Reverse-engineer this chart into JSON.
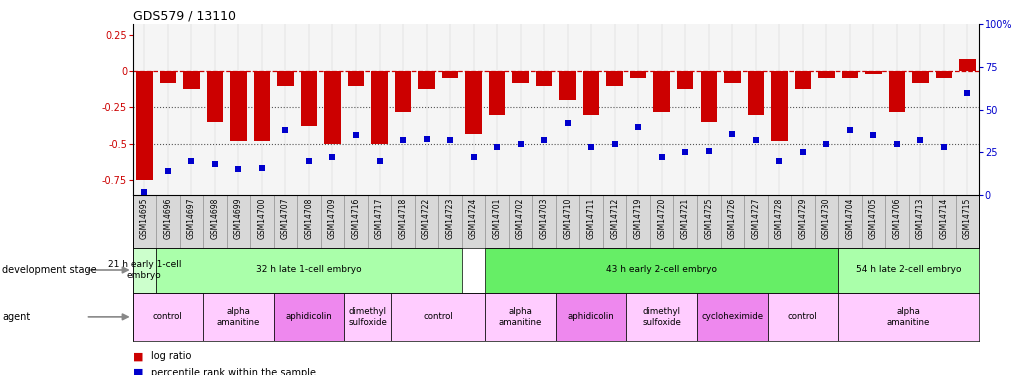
{
  "title": "GDS579 / 13110",
  "samples": [
    "GSM14695",
    "GSM14696",
    "GSM14697",
    "GSM14698",
    "GSM14699",
    "GSM14700",
    "GSM14707",
    "GSM14708",
    "GSM14709",
    "GSM14716",
    "GSM14717",
    "GSM14718",
    "GSM14722",
    "GSM14723",
    "GSM14724",
    "GSM14701",
    "GSM14702",
    "GSM14703",
    "GSM14710",
    "GSM14711",
    "GSM14712",
    "GSM14719",
    "GSM14720",
    "GSM14721",
    "GSM14725",
    "GSM14726",
    "GSM14727",
    "GSM14728",
    "GSM14729",
    "GSM14730",
    "GSM14704",
    "GSM14705",
    "GSM14706",
    "GSM14713",
    "GSM14714",
    "GSM14715"
  ],
  "log_ratio": [
    -0.75,
    -0.08,
    -0.12,
    -0.35,
    -0.48,
    -0.48,
    -0.1,
    -0.38,
    -0.5,
    -0.1,
    -0.5,
    -0.28,
    -0.12,
    -0.05,
    -0.43,
    -0.3,
    -0.08,
    -0.1,
    -0.2,
    -0.3,
    -0.1,
    -0.05,
    -0.28,
    -0.12,
    -0.35,
    -0.08,
    -0.3,
    -0.48,
    -0.12,
    -0.05,
    -0.05,
    -0.02,
    -0.28,
    -0.08,
    -0.05,
    0.08
  ],
  "percentile": [
    2,
    14,
    20,
    18,
    15,
    16,
    38,
    20,
    22,
    35,
    20,
    32,
    33,
    32,
    22,
    28,
    30,
    32,
    42,
    28,
    30,
    40,
    22,
    25,
    26,
    36,
    32,
    20,
    25,
    30,
    38,
    35,
    30,
    32,
    28,
    60
  ],
  "dev_stage_groups": [
    {
      "label": "21 h early 1-cell\nembryо",
      "start": 0,
      "end": 1,
      "color": "#ccffcc"
    },
    {
      "label": "32 h late 1-cell embryo",
      "start": 1,
      "end": 14,
      "color": "#aaffaa"
    },
    {
      "label": "43 h early 2-cell embryo",
      "start": 15,
      "end": 30,
      "color": "#66ee66"
    },
    {
      "label": "54 h late 2-cell embryo",
      "start": 30,
      "end": 36,
      "color": "#aaffaa"
    }
  ],
  "agent_groups": [
    {
      "label": "control",
      "start": 0,
      "end": 3,
      "color": "#ffccff"
    },
    {
      "label": "alpha\namanitine",
      "start": 3,
      "end": 6,
      "color": "#ffccff"
    },
    {
      "label": "aphidicolin",
      "start": 6,
      "end": 9,
      "color": "#ee88ee"
    },
    {
      "label": "dimethyl\nsulfoxide",
      "start": 9,
      "end": 11,
      "color": "#ffccff"
    },
    {
      "label": "control",
      "start": 11,
      "end": 15,
      "color": "#ffccff"
    },
    {
      "label": "alpha\namanitine",
      "start": 15,
      "end": 18,
      "color": "#ffccff"
    },
    {
      "label": "aphidicolin",
      "start": 18,
      "end": 21,
      "color": "#ee88ee"
    },
    {
      "label": "dimethyl\nsulfoxide",
      "start": 21,
      "end": 24,
      "color": "#ffccff"
    },
    {
      "label": "cycloheximide",
      "start": 24,
      "end": 27,
      "color": "#ee88ee"
    },
    {
      "label": "control",
      "start": 27,
      "end": 30,
      "color": "#ffccff"
    },
    {
      "label": "alpha\namanitine",
      "start": 30,
      "end": 36,
      "color": "#ffccff"
    }
  ],
  "ylim_left": [
    -0.85,
    0.32
  ],
  "ylim_right": [
    0,
    100
  ],
  "bar_color": "#cc0000",
  "dot_color": "#0000cc",
  "bg_color": "#ffffff",
  "plot_bg": "#f5f5f5",
  "hline_color": "#cc0000",
  "dotline_color": "#555555",
  "label_bg": "#e0e0e0"
}
